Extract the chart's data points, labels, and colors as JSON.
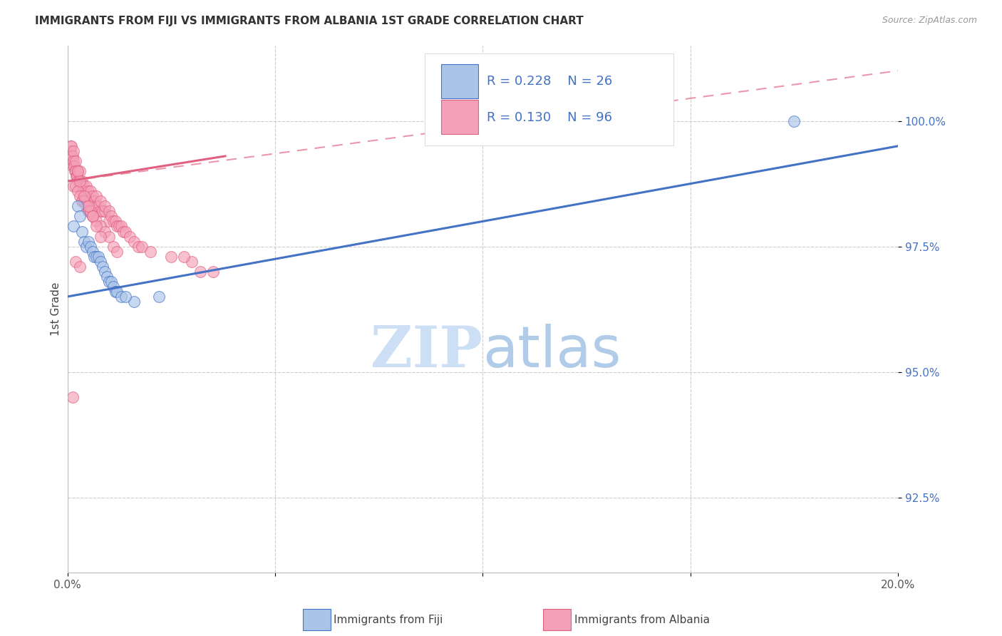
{
  "title": "IMMIGRANTS FROM FIJI VS IMMIGRANTS FROM ALBANIA 1ST GRADE CORRELATION CHART",
  "source": "Source: ZipAtlas.com",
  "ylabel": "1st Grade",
  "xlim": [
    0.0,
    20.0
  ],
  "ylim": [
    91.0,
    101.5
  ],
  "yticks": [
    92.5,
    95.0,
    97.5,
    100.0
  ],
  "ytick_labels": [
    "92.5%",
    "95.0%",
    "97.5%",
    "100.0%"
  ],
  "legend_fiji_r": "R = 0.228",
  "legend_fiji_n": "N = 26",
  "legend_albania_r": "R = 0.130",
  "legend_albania_n": "N = 96",
  "fiji_color": "#aac4e8",
  "fiji_line_color": "#4472c4",
  "albania_color": "#f4a0b8",
  "albania_line_color": "#e06080",
  "legend_text_color": "#4472c4",
  "watermark_zip_color": "#ccdff5",
  "watermark_atlas_color": "#b0cce8",
  "fiji_line_x0": 0.0,
  "fiji_line_y0": 96.5,
  "fiji_line_x1": 20.0,
  "fiji_line_y1": 99.5,
  "albania_solid_x0": 0.0,
  "albania_solid_y0": 98.8,
  "albania_solid_x1": 3.8,
  "albania_solid_y1": 99.3,
  "albania_dash_x0": 0.0,
  "albania_dash_y0": 98.8,
  "albania_dash_x1": 20.0,
  "albania_dash_y1": 101.0,
  "fiji_x": [
    0.15,
    0.25,
    0.3,
    0.35,
    0.4,
    0.45,
    0.5,
    0.55,
    0.6,
    0.65,
    0.7,
    0.75,
    0.8,
    0.85,
    0.9,
    0.95,
    1.0,
    1.05,
    1.1,
    1.15,
    1.2,
    1.6,
    2.2,
    17.5,
    1.3,
    1.4
  ],
  "fiji_y": [
    97.9,
    98.3,
    98.1,
    97.8,
    97.6,
    97.5,
    97.6,
    97.5,
    97.4,
    97.3,
    97.3,
    97.3,
    97.2,
    97.1,
    97.0,
    96.9,
    96.8,
    96.8,
    96.7,
    96.6,
    96.6,
    96.4,
    96.5,
    100.0,
    96.5,
    96.5
  ],
  "albania_x": [
    0.05,
    0.07,
    0.08,
    0.1,
    0.1,
    0.12,
    0.13,
    0.15,
    0.15,
    0.17,
    0.18,
    0.2,
    0.2,
    0.22,
    0.23,
    0.25,
    0.25,
    0.28,
    0.3,
    0.3,
    0.32,
    0.35,
    0.35,
    0.38,
    0.4,
    0.4,
    0.42,
    0.45,
    0.45,
    0.5,
    0.5,
    0.52,
    0.55,
    0.55,
    0.6,
    0.6,
    0.63,
    0.65,
    0.7,
    0.7,
    0.75,
    0.8,
    0.8,
    0.85,
    0.9,
    0.9,
    1.0,
    1.0,
    1.05,
    1.1,
    1.15,
    1.2,
    1.25,
    1.3,
    1.35,
    1.4,
    1.5,
    1.6,
    1.7,
    1.8,
    2.0,
    2.5,
    3.0,
    3.5,
    0.35,
    0.4,
    0.5,
    0.6,
    0.7,
    0.8,
    0.9,
    1.0,
    1.1,
    1.2,
    0.15,
    0.2,
    0.25,
    0.3,
    0.35,
    0.4,
    0.45,
    0.5,
    0.55,
    0.6,
    2.8,
    0.25,
    0.3,
    0.4,
    0.5,
    0.6,
    0.7,
    0.8,
    3.2,
    0.2,
    0.3,
    0.12
  ],
  "albania_y": [
    99.2,
    99.5,
    99.4,
    99.5,
    99.3,
    99.3,
    99.1,
    99.4,
    99.2,
    99.1,
    99.0,
    99.2,
    99.0,
    98.9,
    98.9,
    98.8,
    99.0,
    98.8,
    99.0,
    98.7,
    98.7,
    98.8,
    98.6,
    98.6,
    98.5,
    98.7,
    98.5,
    98.5,
    98.7,
    98.4,
    98.6,
    98.4,
    98.4,
    98.6,
    98.3,
    98.5,
    98.3,
    98.4,
    98.3,
    98.5,
    98.3,
    98.2,
    98.4,
    98.2,
    98.2,
    98.3,
    98.0,
    98.2,
    98.1,
    98.0,
    98.0,
    97.9,
    97.9,
    97.9,
    97.8,
    97.8,
    97.7,
    97.6,
    97.5,
    97.5,
    97.4,
    97.3,
    97.2,
    97.0,
    98.4,
    98.4,
    98.2,
    98.1,
    98.0,
    97.9,
    97.8,
    97.7,
    97.5,
    97.4,
    98.7,
    98.7,
    98.6,
    98.5,
    98.4,
    98.4,
    98.3,
    98.2,
    98.2,
    98.1,
    97.3,
    99.0,
    98.8,
    98.5,
    98.3,
    98.1,
    97.9,
    97.7,
    97.0,
    97.2,
    97.1,
    94.5
  ]
}
